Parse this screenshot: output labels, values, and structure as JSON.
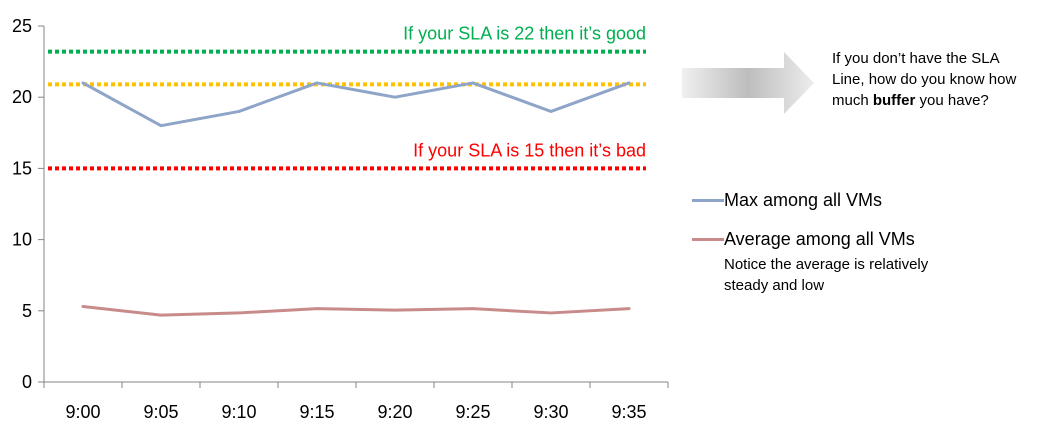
{
  "chart_data": {
    "type": "line",
    "categories": [
      "9:00",
      "9:05",
      "9:10",
      "9:15",
      "9:20",
      "9:25",
      "9:30",
      "9:35"
    ],
    "series": [
      {
        "name": "Max among all VMs",
        "color": "#8ea4c8",
        "values": [
          21,
          18,
          19,
          21,
          20,
          21,
          19,
          21
        ]
      },
      {
        "name": "Average among all VMs",
        "color": "#c98a8a",
        "values": [
          5.3,
          4.7,
          4.85,
          5.15,
          5.05,
          5.15,
          4.85,
          5.15
        ]
      }
    ],
    "ylim": [
      0,
      25
    ],
    "yticks": [
      0,
      5,
      10,
      15,
      20,
      25
    ],
    "grid": false,
    "reference_lines": [
      {
        "value": 23.2,
        "color": "#00b050",
        "label": "If your SLA is 22 then it’s good"
      },
      {
        "value": 20.9,
        "color": "#ffc000",
        "label": ""
      },
      {
        "value": 15,
        "color": "#ff0000",
        "label": "If your SLA is 15 then it’s bad"
      }
    ],
    "legend_placement": "right"
  },
  "note": {
    "line1": "If you don’t have the SLA",
    "line2a": "Line, how do you know how",
    "line3_pre": "much ",
    "line3_bold": "buffer",
    "line3_post": " you have?"
  },
  "legend_note": {
    "line1": "Notice the average is relatively",
    "line2": "steady and low"
  },
  "icons": {
    "arrow": "right-arrow-icon"
  }
}
